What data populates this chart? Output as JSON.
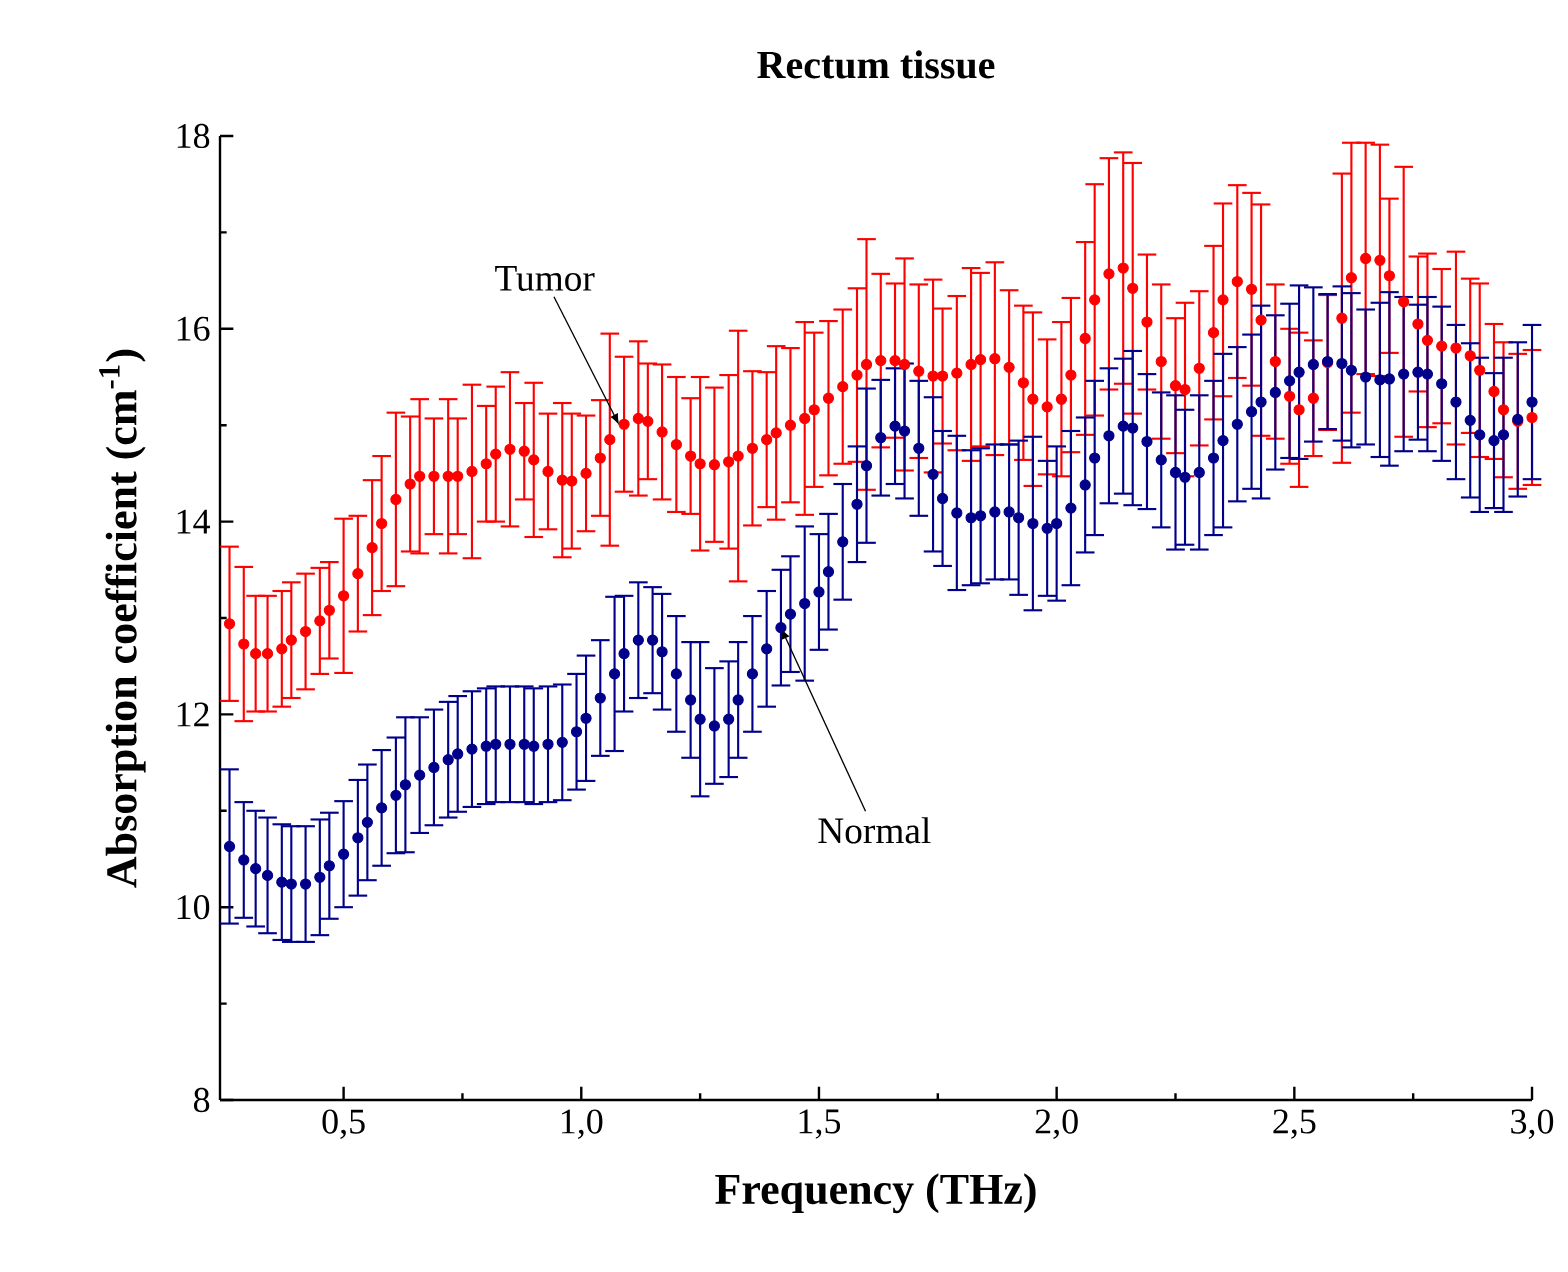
{
  "chart_data": {
    "type": "scatter",
    "title": "Rectum tissue",
    "xlabel": "Frequency (THz)",
    "ylabel": "Absorption coefficient (cm$^{-1}$)",
    "marker": "circle",
    "xlim": [
      0.24,
      3.0
    ],
    "ylim": [
      8,
      18
    ],
    "xticks": [
      {
        "value": 0.5,
        "label": "0,5"
      },
      {
        "value": 1.0,
        "label": "1,0"
      },
      {
        "value": 1.5,
        "label": "1,5"
      },
      {
        "value": 2.0,
        "label": "2,0"
      },
      {
        "value": 2.5,
        "label": "2,5"
      },
      {
        "value": 3.0,
        "label": "3,0"
      }
    ],
    "yticks": [
      8,
      10,
      12,
      14,
      16,
      18
    ],
    "annotations": [
      {
        "text": "Tumor",
        "x": 1.08,
        "y": 15.0
      },
      {
        "text": "Normal",
        "x": 1.42,
        "y": 12.9
      }
    ],
    "series": [
      {
        "color": "#ff0000",
        "x": [
          0.26,
          0.29,
          0.315,
          0.34,
          0.37,
          0.39,
          0.42,
          0.45,
          0.47,
          0.5,
          0.53,
          0.56,
          0.58,
          0.61,
          0.64,
          0.66,
          0.69,
          0.72,
          0.74,
          0.77,
          0.8,
          0.82,
          0.85,
          0.88,
          0.9,
          0.93,
          0.96,
          0.98,
          1.01,
          1.04,
          1.06,
          1.09,
          1.12,
          1.14,
          1.17,
          1.2,
          1.23,
          1.25,
          1.28,
          1.31,
          1.33,
          1.36,
          1.39,
          1.41,
          1.44,
          1.47,
          1.49,
          1.52,
          1.55,
          1.58,
          1.6,
          1.63,
          1.66,
          1.68,
          1.71,
          1.74,
          1.76,
          1.79,
          1.82,
          1.84,
          1.87,
          1.9,
          1.93,
          1.95,
          1.98,
          2.01,
          2.03,
          2.06,
          2.08,
          2.11,
          2.14,
          2.16,
          2.19,
          2.22,
          2.25,
          2.27,
          2.3,
          2.33,
          2.35,
          2.38,
          2.41,
          2.43,
          2.46,
          2.49,
          2.51,
          2.54,
          2.57,
          2.6,
          2.62,
          2.65,
          2.68,
          2.7,
          2.73,
          2.76,
          2.78,
          2.81,
          2.84,
          2.87,
          2.89,
          2.92,
          2.94,
          2.97,
          3.0
        ],
        "values": [
          12.94,
          12.73,
          12.63,
          12.63,
          12.68,
          12.77,
          12.86,
          12.97,
          13.08,
          13.23,
          13.46,
          13.73,
          13.98,
          14.23,
          14.39,
          14.47,
          14.47,
          14.47,
          14.47,
          14.52,
          14.6,
          14.7,
          14.75,
          14.73,
          14.64,
          14.52,
          14.43,
          14.42,
          14.5,
          14.66,
          14.85,
          15.01,
          15.07,
          15.04,
          14.93,
          14.8,
          14.68,
          14.6,
          14.59,
          14.62,
          14.68,
          14.76,
          14.85,
          14.92,
          15.0,
          15.07,
          15.16,
          15.28,
          15.4,
          15.52,
          15.63,
          15.67,
          15.67,
          15.63,
          15.56,
          15.51,
          15.51,
          15.54,
          15.63,
          15.68,
          15.69,
          15.6,
          15.44,
          15.27,
          15.19,
          15.27,
          15.52,
          15.9,
          16.3,
          16.57,
          16.63,
          16.42,
          16.07,
          15.66,
          15.41,
          15.37,
          15.59,
          15.96,
          16.3,
          16.49,
          16.41,
          16.09,
          15.66,
          15.3,
          15.16,
          15.28,
          15.65,
          16.11,
          16.53,
          16.73,
          16.71,
          16.55,
          16.28,
          16.05,
          15.88,
          15.82,
          15.8,
          15.72,
          15.57,
          15.35,
          15.16,
          15.04,
          15.08
        ],
        "errors": [
          0.8,
          0.8,
          0.6,
          0.6,
          0.6,
          0.6,
          0.6,
          0.55,
          0.5,
          0.8,
          0.6,
          0.7,
          0.7,
          0.9,
          0.7,
          0.8,
          0.6,
          0.8,
          0.6,
          0.9,
          0.6,
          0.7,
          0.8,
          0.5,
          0.8,
          0.6,
          0.8,
          0.7,
          0.6,
          0.6,
          1.1,
          0.7,
          0.8,
          0.6,
          0.7,
          0.7,
          0.6,
          0.9,
          0.8,
          0.9,
          1.3,
          0.8,
          0.7,
          0.9,
          0.8,
          1.0,
          0.8,
          0.8,
          0.8,
          0.9,
          1.3,
          0.9,
          0.8,
          1.1,
          0.9,
          1.0,
          0.7,
          0.8,
          1.0,
          0.9,
          1.0,
          0.8,
          0.8,
          0.9,
          0.7,
          0.8,
          0.8,
          1.0,
          1.2,
          1.2,
          1.2,
          1.3,
          0.7,
          0.8,
          0.7,
          0.9,
          0.8,
          0.9,
          1.0,
          1.0,
          1.0,
          1.2,
          0.8,
          0.7,
          0.8,
          0.6,
          0.7,
          1.5,
          1.4,
          1.2,
          1.2,
          0.8,
          1.4,
          0.7,
          0.9,
          0.8,
          1.0,
          0.8,
          0.9,
          0.7,
          0.7,
          0.7,
          0.7
        ]
      },
      {
        "color": "#00008b",
        "x": [
          0.26,
          0.29,
          0.315,
          0.34,
          0.37,
          0.39,
          0.42,
          0.45,
          0.47,
          0.5,
          0.53,
          0.55,
          0.58,
          0.61,
          0.63,
          0.66,
          0.69,
          0.72,
          0.74,
          0.77,
          0.8,
          0.82,
          0.85,
          0.88,
          0.9,
          0.93,
          0.96,
          0.99,
          1.01,
          1.04,
          1.07,
          1.09,
          1.12,
          1.15,
          1.17,
          1.2,
          1.23,
          1.25,
          1.28,
          1.31,
          1.33,
          1.36,
          1.39,
          1.42,
          1.44,
          1.47,
          1.5,
          1.52,
          1.55,
          1.58,
          1.6,
          1.63,
          1.66,
          1.68,
          1.71,
          1.74,
          1.76,
          1.79,
          1.82,
          1.84,
          1.87,
          1.9,
          1.92,
          1.95,
          1.98,
          2.0,
          2.03,
          2.06,
          2.08,
          2.11,
          2.14,
          2.16,
          2.19,
          2.22,
          2.25,
          2.27,
          2.3,
          2.33,
          2.35,
          2.38,
          2.41,
          2.43,
          2.46,
          2.49,
          2.51,
          2.54,
          2.57,
          2.6,
          2.62,
          2.65,
          2.68,
          2.7,
          2.73,
          2.76,
          2.78,
          2.81,
          2.84,
          2.87,
          2.89,
          2.92,
          2.94,
          2.97,
          3.0
        ],
        "values": [
          10.63,
          10.49,
          10.4,
          10.33,
          10.26,
          10.24,
          10.24,
          10.31,
          10.43,
          10.55,
          10.72,
          10.88,
          11.03,
          11.16,
          11.27,
          11.37,
          11.45,
          11.53,
          11.59,
          11.64,
          11.67,
          11.69,
          11.69,
          11.69,
          11.67,
          11.69,
          11.71,
          11.82,
          11.96,
          12.17,
          12.42,
          12.63,
          12.77,
          12.77,
          12.65,
          12.42,
          12.15,
          11.95,
          11.88,
          11.95,
          12.15,
          12.42,
          12.68,
          12.9,
          13.04,
          13.15,
          13.27,
          13.48,
          13.79,
          14.18,
          14.58,
          14.87,
          14.99,
          14.94,
          14.76,
          14.49,
          14.24,
          14.09,
          14.04,
          14.06,
          14.1,
          14.1,
          14.04,
          13.98,
          13.93,
          13.98,
          14.14,
          14.38,
          14.66,
          14.89,
          14.99,
          14.97,
          14.83,
          14.64,
          14.51,
          14.46,
          14.51,
          14.66,
          14.84,
          15.01,
          15.14,
          15.24,
          15.34,
          15.46,
          15.55,
          15.63,
          15.66,
          15.64,
          15.57,
          15.5,
          15.47,
          15.48,
          15.53,
          15.55,
          15.53,
          15.43,
          15.24,
          15.05,
          14.9,
          14.84,
          14.9,
          15.06,
          15.24
        ],
        "errors": [
          0.8,
          0.6,
          0.6,
          0.6,
          0.6,
          0.6,
          0.6,
          0.6,
          0.55,
          0.55,
          0.6,
          0.6,
          0.6,
          0.6,
          0.7,
          0.6,
          0.6,
          0.6,
          0.6,
          0.6,
          0.6,
          0.6,
          0.6,
          0.6,
          0.6,
          0.6,
          0.6,
          0.6,
          0.65,
          0.6,
          0.8,
          0.6,
          0.6,
          0.55,
          0.6,
          0.6,
          0.6,
          0.8,
          0.6,
          0.6,
          0.6,
          0.6,
          0.6,
          0.6,
          0.6,
          0.8,
          0.6,
          0.6,
          0.6,
          0.6,
          0.8,
          0.6,
          0.6,
          0.7,
          0.7,
          0.8,
          0.7,
          0.8,
          0.7,
          0.7,
          0.7,
          0.7,
          0.8,
          0.9,
          0.7,
          0.8,
          0.8,
          0.7,
          0.8,
          0.7,
          0.7,
          0.8,
          0.7,
          0.7,
          0.8,
          0.7,
          0.8,
          0.8,
          0.9,
          0.8,
          0.8,
          1.0,
          0.8,
          0.8,
          0.9,
          0.8,
          0.7,
          0.8,
          0.8,
          0.7,
          0.8,
          0.9,
          0.8,
          0.7,
          0.8,
          0.8,
          0.8,
          0.8,
          0.8,
          0.7,
          0.8,
          0.8,
          0.8
        ]
      }
    ]
  }
}
